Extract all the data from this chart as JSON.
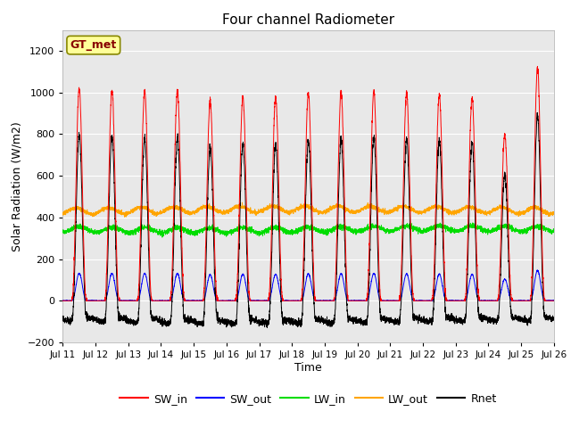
{
  "title": "Four channel Radiometer",
  "xlabel": "Time",
  "ylabel": "Solar Radiation (W/m2)",
  "ylim": [
    -200,
    1300
  ],
  "yticks": [
    -200,
    0,
    200,
    400,
    600,
    800,
    1000,
    1200
  ],
  "xlim": [
    11,
    26
  ],
  "x_tick_positions": [
    11,
    12,
    13,
    14,
    15,
    16,
    17,
    18,
    19,
    20,
    21,
    22,
    23,
    24,
    25,
    26
  ],
  "x_tick_labels": [
    "Jul 11",
    "Jul 12",
    "Jul 13",
    "Jul 14",
    "Jul 15",
    "Jul 16",
    "Jul 17",
    "Jul 18",
    "Jul 19",
    "Jul 20",
    "Jul 21",
    "Jul 22",
    "Jul 23",
    "Jul 24",
    "Jul 25",
    "Jul 26"
  ],
  "colors": {
    "SW_in": "#ff0000",
    "SW_out": "#0000ff",
    "LW_in": "#00dd00",
    "LW_out": "#ffa500",
    "Rnet": "#000000"
  },
  "bg_color": "#d8d8d8",
  "plot_bg_color": "#e8e8e8",
  "label_box_color": "#ffff99",
  "label_box_edge": "#888800",
  "label_text": "GT_met",
  "label_text_color": "#880000",
  "grid_color": "#ffffff",
  "legend_entries": [
    "SW_in",
    "SW_out",
    "LW_in",
    "LW_out",
    "Rnet"
  ],
  "day_peaks_sw_in": [
    1020,
    1010,
    1005,
    1010,
    960,
    980,
    980,
    995,
    1000,
    1010,
    1000,
    990,
    975,
    800,
    1120
  ],
  "n_days": 15,
  "pts_per_day": 288
}
